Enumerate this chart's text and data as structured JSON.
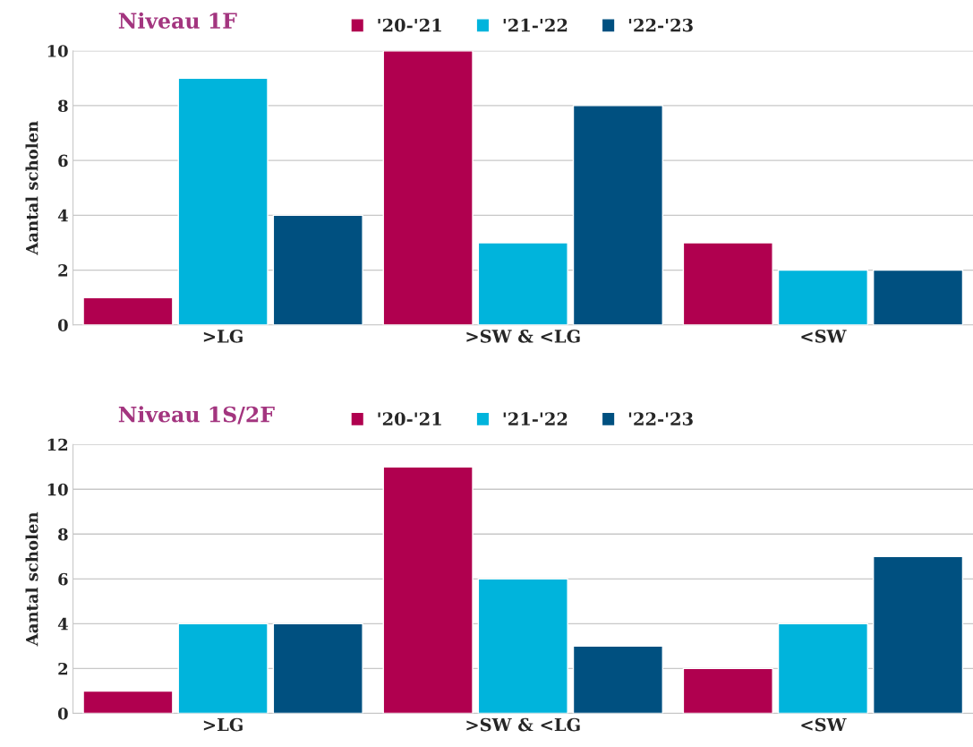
{
  "chart_data": [
    {
      "type": "bar",
      "title": "Niveau 1F",
      "ylabel": "Aantal scholen",
      "categories": [
        ">LG",
        ">SW & <LG",
        "<SW"
      ],
      "series": [
        {
          "name": "'20-'21",
          "color": "#b0004f",
          "values": [
            1,
            10,
            3
          ]
        },
        {
          "name": "'21-'22",
          "color": "#00b4dc",
          "values": [
            9,
            3,
            2
          ]
        },
        {
          "name": "'22-'23",
          "color": "#005080",
          "values": [
            4,
            8,
            2
          ]
        }
      ],
      "ylim": [
        0,
        10
      ],
      "yticks": [
        0,
        2,
        4,
        6,
        8,
        10
      ],
      "grid": "y",
      "legend": "top"
    },
    {
      "type": "bar",
      "title": "Niveau 1S/2F",
      "ylabel": "Aantal scholen",
      "categories": [
        ">LG",
        ">SW & <LG",
        "<SW"
      ],
      "series": [
        {
          "name": "'20-'21",
          "color": "#b0004f",
          "values": [
            1,
            11,
            2
          ]
        },
        {
          "name": "'21-'22",
          "color": "#00b4dc",
          "values": [
            4,
            6,
            4
          ]
        },
        {
          "name": "'22-'23",
          "color": "#005080",
          "values": [
            4,
            3,
            7
          ]
        }
      ],
      "ylim": [
        0,
        12
      ],
      "yticks": [
        0,
        2,
        4,
        6,
        8,
        10,
        12
      ],
      "grid": "y",
      "legend": "top"
    }
  ]
}
